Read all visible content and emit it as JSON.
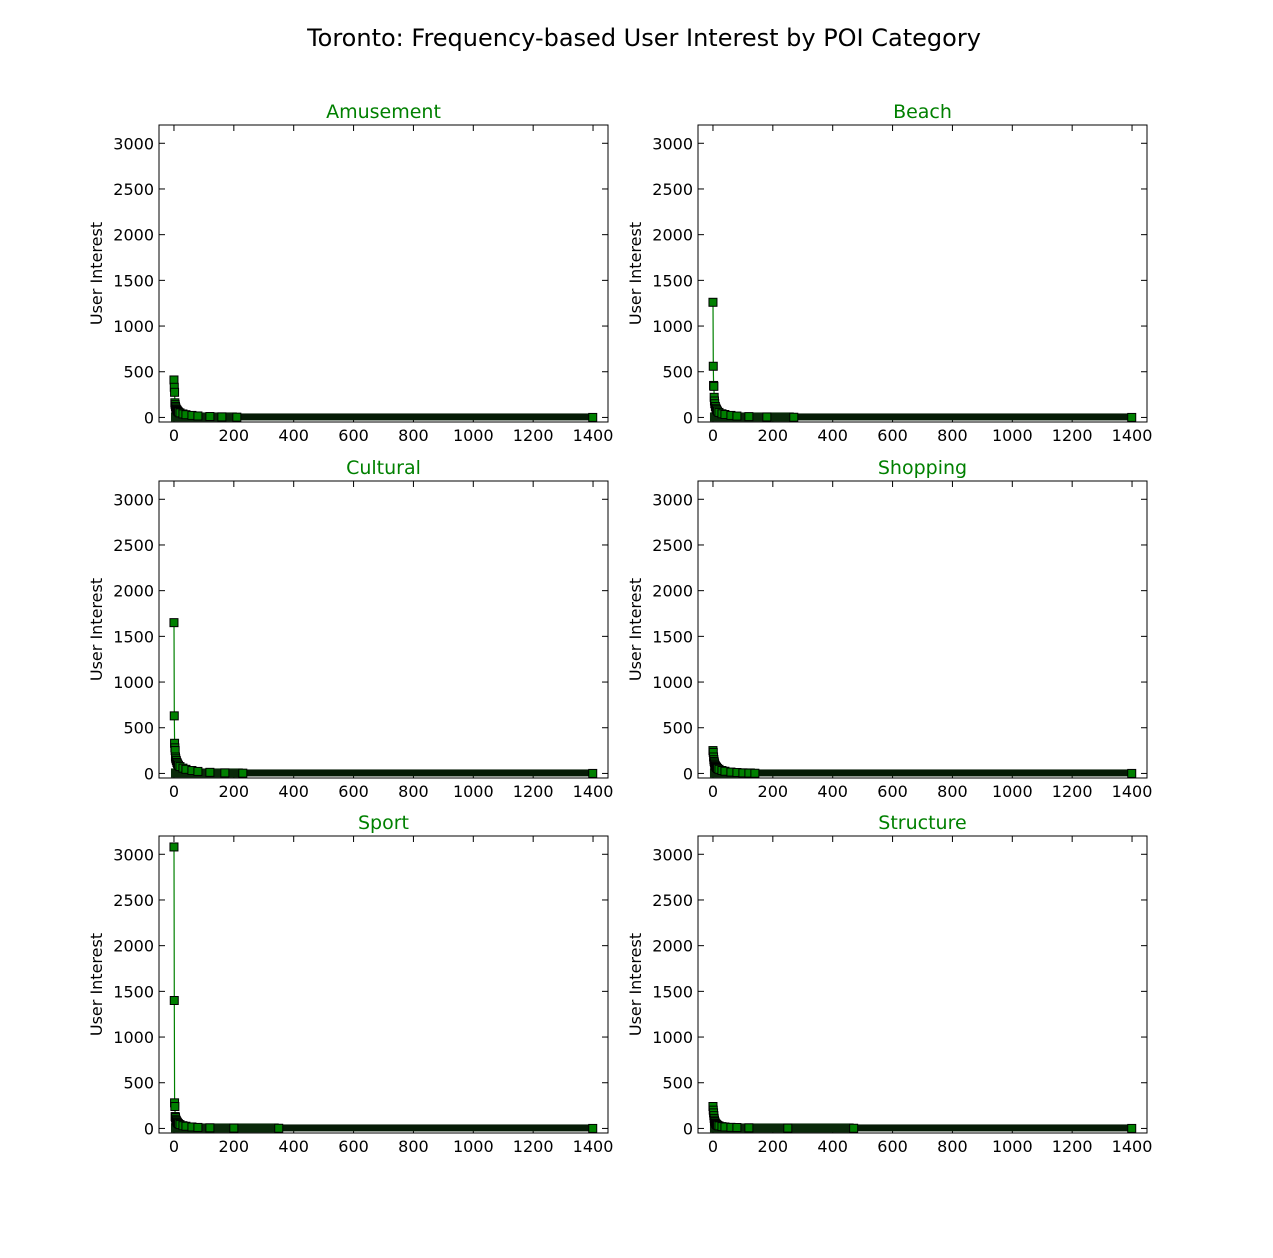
{
  "figure": {
    "title": "Toronto: Frequency-based User Interest by POI Category",
    "title_color": "#000000",
    "subplot_title_color": "#008000",
    "line_color": "#008000",
    "marker_face_color": "#008000",
    "marker_edge_color": "#000000",
    "marker_shape": "square"
  },
  "chart_data": [
    {
      "type": "line",
      "title": "Amusement",
      "xlabel": "",
      "ylabel": "User Interest",
      "xlim": [
        -50,
        1450
      ],
      "ylim": [
        -50,
        3200
      ],
      "xticks": [
        "0",
        "200",
        "400",
        "600",
        "800",
        "1000",
        "1200",
        "1400"
      ],
      "yticks": [
        "0",
        "500",
        "1000",
        "1500",
        "2000",
        "2500",
        "3000"
      ],
      "grid": false,
      "n_points": 1400,
      "tail_extent": 210,
      "series": [
        {
          "x": [
            0,
            1,
            2,
            3,
            4,
            5,
            6,
            8,
            10,
            12,
            15,
            20,
            30,
            40,
            60,
            80,
            120,
            160,
            210,
            1399
          ],
          "values": [
            410,
            330,
            275,
            160,
            140,
            120,
            105,
            90,
            80,
            70,
            60,
            50,
            38,
            30,
            22,
            16,
            10,
            6,
            3,
            0
          ]
        }
      ]
    },
    {
      "type": "line",
      "title": "Beach",
      "xlabel": "",
      "ylabel": "User Interest",
      "xlim": [
        -50,
        1450
      ],
      "ylim": [
        -50,
        3200
      ],
      "xticks": [
        "0",
        "200",
        "400",
        "600",
        "800",
        "1000",
        "1200",
        "1400"
      ],
      "yticks": [
        "0",
        "500",
        "1000",
        "1500",
        "2000",
        "2500",
        "3000"
      ],
      "grid": false,
      "n_points": 1400,
      "tail_extent": 270,
      "series": [
        {
          "x": [
            0,
            1,
            2,
            3,
            4,
            5,
            6,
            8,
            10,
            12,
            15,
            20,
            30,
            40,
            60,
            80,
            120,
            180,
            270,
            1399
          ],
          "values": [
            1260,
            560,
            350,
            340,
            220,
            180,
            150,
            120,
            100,
            85,
            70,
            55,
            40,
            32,
            22,
            15,
            9,
            5,
            2,
            0
          ]
        }
      ]
    },
    {
      "type": "line",
      "title": "Cultural",
      "xlabel": "",
      "ylabel": "User Interest",
      "xlim": [
        -50,
        1450
      ],
      "ylim": [
        -50,
        3200
      ],
      "xticks": [
        "0",
        "200",
        "400",
        "600",
        "800",
        "1000",
        "1200",
        "1400"
      ],
      "yticks": [
        "0",
        "500",
        "1000",
        "1500",
        "2000",
        "2500",
        "3000"
      ],
      "grid": false,
      "n_points": 1400,
      "tail_extent": 230,
      "series": [
        {
          "x": [
            0,
            1,
            2,
            3,
            4,
            5,
            6,
            8,
            10,
            12,
            15,
            20,
            30,
            40,
            60,
            80,
            120,
            170,
            230,
            1399
          ],
          "values": [
            1650,
            630,
            330,
            280,
            250,
            180,
            160,
            140,
            120,
            105,
            90,
            75,
            58,
            45,
            32,
            22,
            12,
            6,
            3,
            0
          ]
        }
      ]
    },
    {
      "type": "line",
      "title": "Shopping",
      "xlabel": "",
      "ylabel": "User Interest",
      "xlim": [
        -50,
        1450
      ],
      "ylim": [
        -50,
        3200
      ],
      "xticks": [
        "0",
        "200",
        "400",
        "600",
        "800",
        "1000",
        "1200",
        "1400"
      ],
      "yticks": [
        "0",
        "500",
        "1000",
        "1500",
        "2000",
        "2500",
        "3000"
      ],
      "grid": false,
      "n_points": 1400,
      "tail_extent": 140,
      "series": [
        {
          "x": [
            0,
            1,
            2,
            3,
            4,
            5,
            6,
            8,
            10,
            12,
            15,
            20,
            30,
            40,
            60,
            80,
            100,
            120,
            140,
            1399
          ],
          "values": [
            250,
            230,
            180,
            150,
            130,
            115,
            100,
            85,
            75,
            65,
            55,
            45,
            32,
            24,
            15,
            10,
            6,
            4,
            2,
            0
          ]
        }
      ]
    },
    {
      "type": "line",
      "title": "Sport",
      "xlabel": "",
      "ylabel": "User Interest",
      "xlim": [
        -50,
        1450
      ],
      "ylim": [
        -50,
        3200
      ],
      "xticks": [
        "0",
        "200",
        "400",
        "600",
        "800",
        "1000",
        "1200",
        "1400"
      ],
      "yticks": [
        "0",
        "500",
        "1000",
        "1500",
        "2000",
        "2500",
        "3000"
      ],
      "grid": false,
      "n_points": 1400,
      "tail_extent": 350,
      "series": [
        {
          "x": [
            0,
            1,
            2,
            3,
            4,
            5,
            6,
            8,
            10,
            12,
            15,
            20,
            30,
            40,
            60,
            80,
            120,
            200,
            350,
            1399
          ],
          "values": [
            3080,
            1400,
            280,
            240,
            130,
            120,
            100,
            85,
            72,
            62,
            52,
            42,
            30,
            24,
            16,
            11,
            7,
            4,
            2,
            0
          ]
        }
      ]
    },
    {
      "type": "line",
      "title": "Structure",
      "xlabel": "",
      "ylabel": "User Interest",
      "xlim": [
        -50,
        1450
      ],
      "ylim": [
        -50,
        3200
      ],
      "xticks": [
        "0",
        "200",
        "400",
        "600",
        "800",
        "1000",
        "1200",
        "1400"
      ],
      "yticks": [
        "0",
        "500",
        "1000",
        "1500",
        "2000",
        "2500",
        "3000"
      ],
      "grid": false,
      "n_points": 1400,
      "tail_extent": 470,
      "series": [
        {
          "x": [
            0,
            1,
            2,
            3,
            4,
            5,
            6,
            8,
            10,
            12,
            15,
            20,
            30,
            40,
            60,
            80,
            120,
            250,
            470,
            1399
          ],
          "values": [
            240,
            200,
            170,
            140,
            110,
            90,
            75,
            60,
            50,
            42,
            35,
            28,
            20,
            16,
            12,
            10,
            7,
            4,
            2,
            0
          ]
        }
      ]
    }
  ]
}
